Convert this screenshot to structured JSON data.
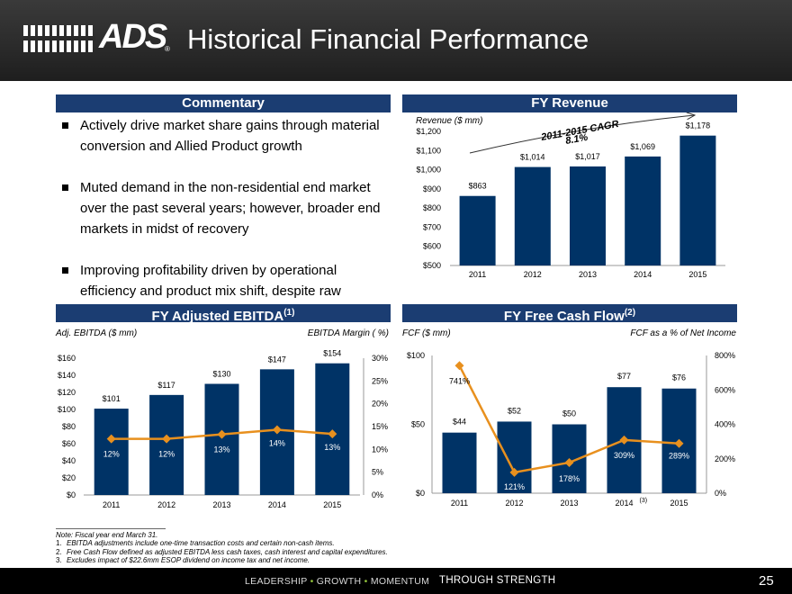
{
  "header": {
    "title": "Historical Financial Performance",
    "logo_text": "ADS",
    "logo_mark": "®"
  },
  "commentary": {
    "heading": "Commentary",
    "bullets": [
      "Actively drive market share gains through material conversion and Allied Product growth",
      "Muted demand in the non-residential end market over the past several years; however, broader end markets in midst of recovery",
      "Improving profitability driven by operational efficiency and product mix shift, despite raw material headwinds in recent years"
    ]
  },
  "colors": {
    "bar": "#003366",
    "line": "#e8901e",
    "panel": "#1b3d72"
  },
  "chart_data": [
    {
      "type": "bar",
      "heading": "FY Revenue",
      "ylabel": "Revenue ($ mm)",
      "categories": [
        "2011",
        "2012",
        "2013",
        "2014",
        "2015"
      ],
      "values": [
        863,
        1014,
        1017,
        1069,
        1178
      ],
      "value_labels": [
        "$863",
        "$1,014",
        "$1,017",
        "$1,069",
        "$1,178"
      ],
      "ylim": [
        500,
        1200
      ],
      "y_ticks": [
        500,
        600,
        700,
        800,
        900,
        1000,
        1100,
        1200
      ],
      "y_tick_labels": [
        "$500",
        "$600",
        "$700",
        "$800",
        "$900",
        "$1,000",
        "$1,100",
        "$1,200"
      ],
      "annotation": {
        "line1": "2011-2015 CAGR",
        "line2": "8.1%"
      }
    },
    {
      "type": "bar",
      "heading": "FY Adjusted EBITDA",
      "heading_sup": "(1)",
      "ylabel": "Adj. EBITDA ($ mm)",
      "y2label": "EBITDA Margin ( %)",
      "categories": [
        "2011",
        "2012",
        "2013",
        "2014",
        "2015"
      ],
      "values": [
        101,
        117,
        130,
        147,
        154
      ],
      "value_labels": [
        "$101",
        "$117",
        "$130",
        "$147",
        "$154"
      ],
      "ylim": [
        0,
        160
      ],
      "y_ticks": [
        0,
        20,
        40,
        60,
        80,
        100,
        120,
        140,
        160
      ],
      "y_tick_labels": [
        "$0",
        "$20",
        "$40",
        "$60",
        "$80",
        "$100",
        "$120",
        "$140",
        "$160"
      ],
      "line": {
        "name": "EBITDA Margin",
        "values": [
          12,
          12,
          13,
          14,
          13
        ],
        "value_labels": [
          "12%",
          "12%",
          "13%",
          "14%",
          "13%"
        ],
        "plot_values": [
          12.3,
          12.3,
          13.3,
          14.3,
          13.4
        ]
      },
      "y2lim": [
        0,
        30
      ],
      "y2_ticks": [
        0,
        5,
        10,
        15,
        20,
        25,
        30
      ],
      "y2_tick_labels": [
        "0%",
        "5%",
        "10%",
        "15%",
        "20%",
        "25%",
        "30%"
      ]
    },
    {
      "type": "bar",
      "heading": "FY Free Cash Flow",
      "heading_sup": "(2)",
      "ylabel": "FCF ($ mm)",
      "y2label": "FCF as a % of Net Income",
      "categories": [
        "2011",
        "2012",
        "2013",
        "2014",
        "2015"
      ],
      "category_sups": [
        "",
        "",
        "",
        "(3)",
        ""
      ],
      "values": [
        44,
        52,
        50,
        77,
        76
      ],
      "value_labels": [
        "$44",
        "$52",
        "$50",
        "$77",
        "$76"
      ],
      "ylim": [
        0,
        100
      ],
      "y_ticks": [
        0,
        50,
        100
      ],
      "y_tick_labels": [
        "$0",
        "$50",
        "$100"
      ],
      "line": {
        "name": "FCF as a % of Net Income",
        "values": [
          741,
          121,
          178,
          309,
          289
        ],
        "value_labels": [
          "741%",
          "121%",
          "178%",
          "309%",
          "289%"
        ]
      },
      "y2lim": [
        0,
        800
      ],
      "y2_ticks": [
        0,
        200,
        400,
        600,
        800
      ],
      "y2_tick_labels": [
        "0%",
        "200%",
        "400%",
        "600%",
        "800%"
      ]
    }
  ],
  "footnotes": {
    "note": "Note:  Fiscal year end March 31.",
    "items": [
      {
        "n": "1.",
        "text": "EBITDA adjustments include one-time transaction costs and certain non-cash items."
      },
      {
        "n": "2.",
        "text": "Free Cash Flow defined as adjusted EBITDA less cash taxes, cash interest and capital expenditures."
      },
      {
        "n": "3.",
        "text": "Excludes impact of $22.6mm ESOP dividend on income tax and net income."
      }
    ]
  },
  "footer": {
    "w1": "LEADERSHIP",
    "sep": "•",
    "w2": "GROWTH",
    "w3": "MOMENTUM",
    "strength": "THROUGH STRENGTH",
    "page": "25"
  }
}
